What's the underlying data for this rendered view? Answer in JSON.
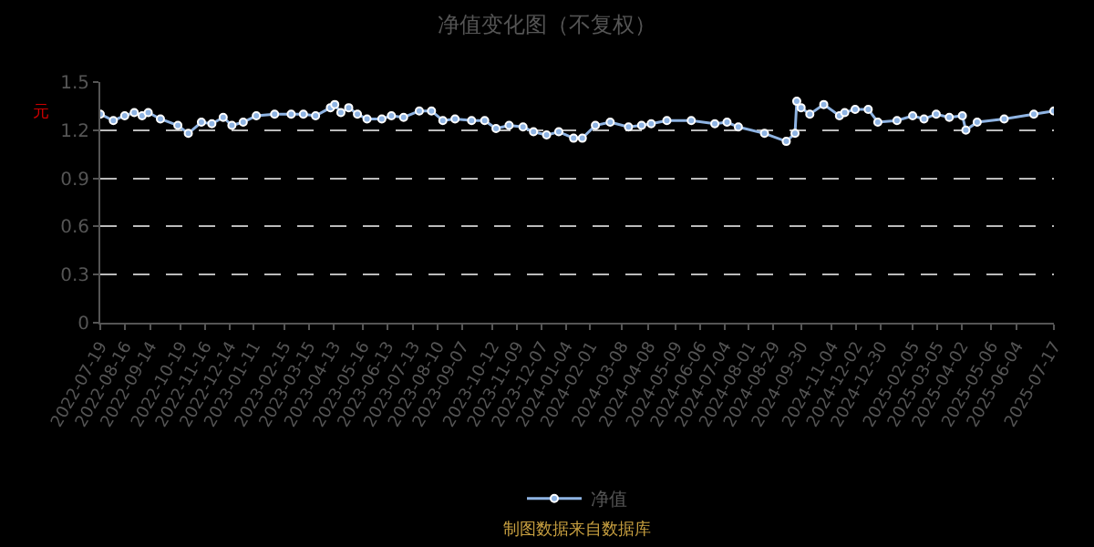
{
  "chart_data": {
    "type": "line",
    "title": "净值变化图（不复权）",
    "ylabel": "元",
    "annotations": [
      "制图数据来自数据库"
    ],
    "x": [
      "2022-07-19",
      "2022-08-03",
      "2022-08-16",
      "2022-08-27",
      "2022-09-05",
      "2022-09-12",
      "2022-09-26",
      "2022-10-16",
      "2022-10-28",
      "2022-11-12",
      "2022-11-24",
      "2022-12-07",
      "2022-12-17",
      "2022-12-30",
      "2023-01-14",
      "2023-02-04",
      "2023-02-23",
      "2023-03-09",
      "2023-03-23",
      "2023-04-09",
      "2023-04-14",
      "2023-04-21",
      "2023-04-30",
      "2023-05-10",
      "2023-05-21",
      "2023-06-07",
      "2023-06-18",
      "2023-07-02",
      "2023-07-20",
      "2023-08-03",
      "2023-08-16",
      "2023-08-30",
      "2023-09-18",
      "2023-10-03",
      "2023-10-16",
      "2023-10-31",
      "2023-11-16",
      "2023-11-28",
      "2023-12-13",
      "2023-12-27",
      "2024-01-13",
      "2024-01-23",
      "2024-02-07",
      "2024-02-24",
      "2024-03-16",
      "2024-03-31",
      "2024-04-11",
      "2024-04-29",
      "2024-05-27",
      "2024-06-23",
      "2024-07-07",
      "2024-07-20",
      "2024-08-19",
      "2024-09-13",
      "2024-09-23",
      "2024-09-25",
      "2024-09-30",
      "2024-10-10",
      "2024-10-26",
      "2024-11-13",
      "2024-11-19",
      "2024-12-01",
      "2024-12-16",
      "2024-12-27",
      "2025-01-18",
      "2025-02-05",
      "2025-02-18",
      "2025-03-04",
      "2025-03-19",
      "2025-04-03",
      "2025-04-07",
      "2025-04-20",
      "2025-05-21",
      "2025-06-24",
      "2025-07-17"
    ],
    "series": [
      {
        "name": "净值",
        "color": "#8fb4e3",
        "values": [
          1.3,
          1.26,
          1.29,
          1.31,
          1.29,
          1.31,
          1.27,
          1.23,
          1.18,
          1.25,
          1.24,
          1.28,
          1.23,
          1.25,
          1.29,
          1.3,
          1.3,
          1.3,
          1.29,
          1.34,
          1.36,
          1.31,
          1.34,
          1.3,
          1.27,
          1.27,
          1.29,
          1.28,
          1.32,
          1.32,
          1.26,
          1.27,
          1.26,
          1.26,
          1.21,
          1.23,
          1.22,
          1.19,
          1.17,
          1.19,
          1.15,
          1.15,
          1.23,
          1.25,
          1.22,
          1.23,
          1.24,
          1.26,
          1.26,
          1.24,
          1.25,
          1.22,
          1.18,
          1.13,
          1.18,
          1.38,
          1.34,
          1.3,
          1.36,
          1.29,
          1.31,
          1.33,
          1.33,
          1.25,
          1.26,
          1.29,
          1.27,
          1.3,
          1.28,
          1.29,
          1.2,
          1.25,
          1.27,
          1.3,
          1.32
        ]
      }
    ],
    "xlim": [
      "2022-07-19",
      "2025-07-17"
    ],
    "xticks": [
      "2022-07-19",
      "2022-08-16",
      "2022-09-14",
      "2022-10-19",
      "2022-11-16",
      "2022-12-14",
      "2023-01-11",
      "2023-02-15",
      "2023-03-15",
      "2023-04-13",
      "2023-05-16",
      "2023-06-13",
      "2023-07-13",
      "2023-08-10",
      "2023-09-07",
      "2023-10-12",
      "2023-11-09",
      "2023-12-07",
      "2024-01-04",
      "2024-02-01",
      "2024-03-08",
      "2024-04-08",
      "2024-05-09",
      "2024-06-06",
      "2024-07-04",
      "2024-08-01",
      "2024-08-29",
      "2024-09-30",
      "2024-11-04",
      "2024-12-02",
      "2024-12-30",
      "2025-02-05",
      "2025-03-05",
      "2025-04-02",
      "2025-05-06",
      "2025-06-04",
      "2025-07-17"
    ],
    "ylim": [
      0,
      1.5
    ],
    "yticks": [
      0,
      0.3,
      0.6,
      0.9,
      1.2,
      1.5
    ],
    "grid": "y",
    "legend": "bottom",
    "marker": "circle",
    "line_style": "solid"
  }
}
